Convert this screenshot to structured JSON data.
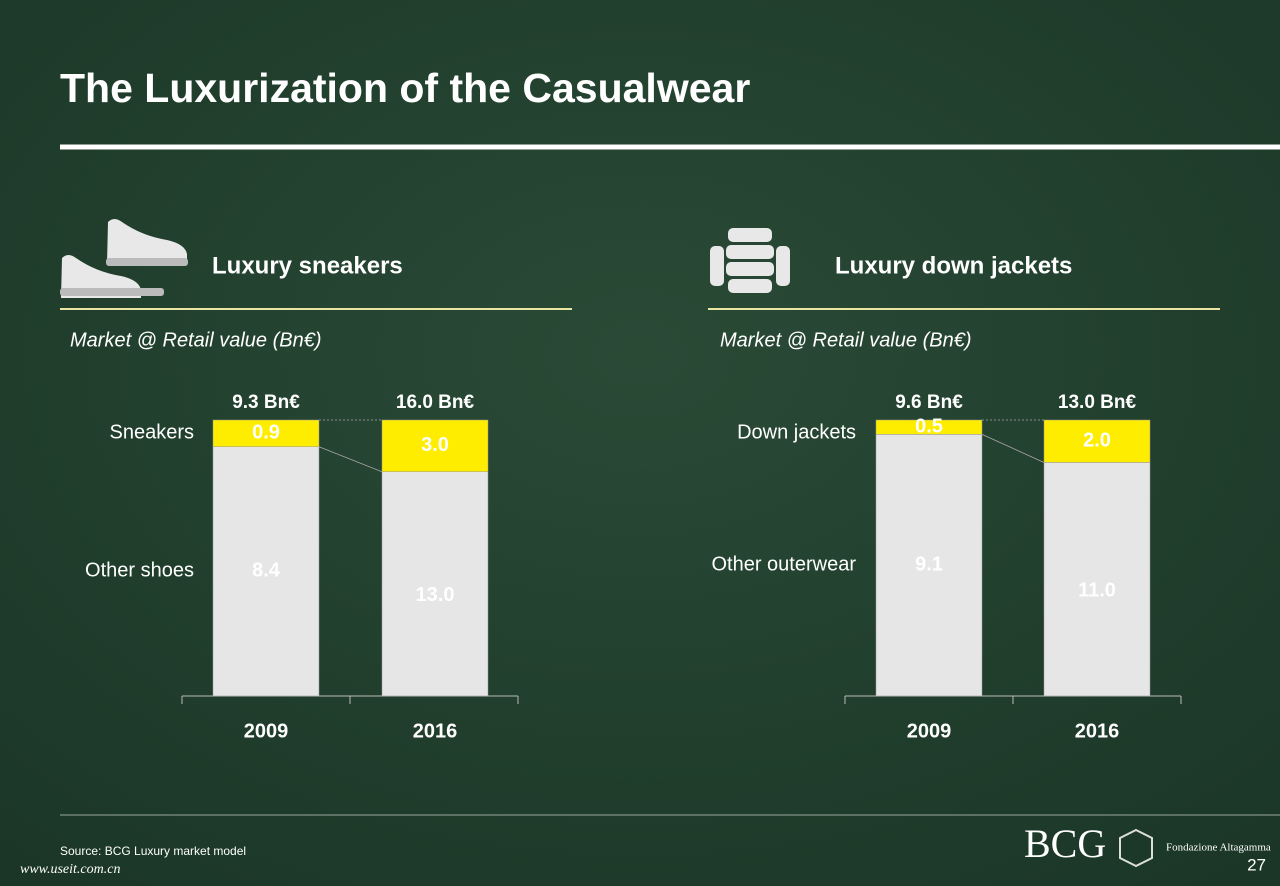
{
  "title": "The Luxurization of the Casualwear",
  "source": "Source: BCG Luxury market model",
  "logo_bcg": "BCG",
  "logo_altagamma": "Fondazione Altagamma",
  "page_number": "27",
  "watermark": "www.useit.com.cn",
  "chart_data": [
    {
      "type": "bar",
      "stacked": "percent",
      "title": "Luxury sneakers",
      "subtitle": "Market @ Retail value (Bn€)",
      "categories": [
        "2009",
        "2016"
      ],
      "totals": {
        "values": [
          9.3,
          16.0
        ],
        "value_labels": [
          "9.3 Bn€",
          "16.0 Bn€"
        ]
      },
      "series": [
        {
          "name": "Other shoes",
          "color": "#e6e6e6",
          "values": [
            8.4,
            13.0
          ],
          "value_labels": [
            "8.4",
            "13.0"
          ]
        },
        {
          "name": "Sneakers",
          "color": "#ffed00",
          "values": [
            0.9,
            3.0
          ],
          "value_labels": [
            "0.9",
            "3.0"
          ]
        }
      ]
    },
    {
      "type": "bar",
      "stacked": "percent",
      "title": "Luxury down jackets",
      "subtitle": "Market @ Retail value (Bn€)",
      "categories": [
        "2009",
        "2016"
      ],
      "totals": {
        "values": [
          9.6,
          13.0
        ],
        "value_labels": [
          "9.6 Bn€",
          "13.0 Bn€"
        ]
      },
      "series": [
        {
          "name": "Other outerwear",
          "color": "#e6e6e6",
          "values": [
            9.1,
            11.0
          ],
          "value_labels": [
            "9.1",
            "11.0"
          ]
        },
        {
          "name": "Down jackets",
          "color": "#ffed00",
          "values": [
            0.5,
            2.0
          ],
          "value_labels": [
            "0.5",
            "2.0"
          ]
        }
      ]
    }
  ]
}
